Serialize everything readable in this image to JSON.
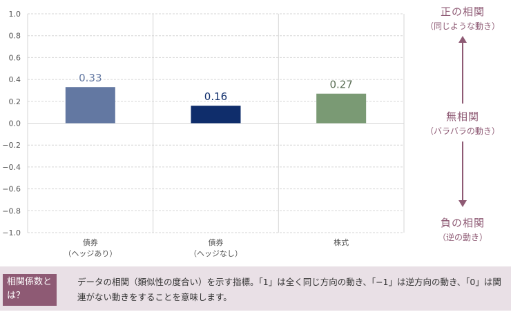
{
  "chart_data": {
    "type": "bar",
    "categories": [
      [
        "債券",
        "（ヘッジあり）"
      ],
      [
        "債券",
        "（ヘッジなし）"
      ],
      [
        "株式"
      ]
    ],
    "values": [
      0.33,
      0.16,
      0.27
    ],
    "value_labels": [
      "0.33",
      "0.16",
      "0.27"
    ],
    "bar_colors": [
      "#6378a2",
      "#0f2d6b",
      "#7a9a74"
    ],
    "label_colors": [
      "#6378a2",
      "#0f2d6b",
      "#5a6e55"
    ],
    "ylim": [
      -1.0,
      1.0
    ],
    "yticks": [
      "1.0",
      "0.8",
      "0.6",
      "0.4",
      "0.2",
      "0.0",
      "−0.2",
      "−0.4",
      "−0.6",
      "−0.8",
      "−1.0"
    ],
    "ytick_values": [
      1.0,
      0.8,
      0.6,
      0.4,
      0.2,
      0.0,
      -0.2,
      -0.4,
      -0.6,
      -0.8,
      -1.0
    ],
    "grid": "dashed",
    "title": "",
    "xlabel": "",
    "ylabel": ""
  },
  "side_labels": {
    "positive": {
      "title": "正の相関",
      "subtitle": "（同じような動き）"
    },
    "zero": {
      "title": "無相関",
      "subtitle": "（バラバラの動き）"
    },
    "negative": {
      "title": "負の相関",
      "subtitle": "（逆の動き）"
    }
  },
  "footer": {
    "tag": "相関係数とは？",
    "text": "データの相関（類似性の度合い）を示す指標。「1」は全く同じ方向の動き、「−1」は逆方向の動き、「0」は関連がない動きをすることを意味します。"
  },
  "colors": {
    "accent": "#8e5a74",
    "footer_bg": "#e9e0e6"
  }
}
